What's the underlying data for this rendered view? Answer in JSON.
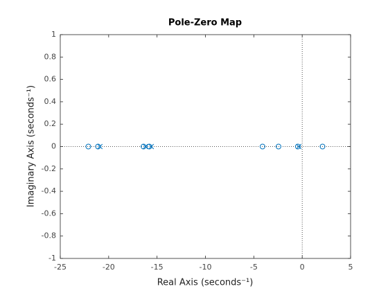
{
  "chart_data": {
    "type": "scatter",
    "title": "Pole-Zero Map",
    "xlabel": "Real Axis (seconds⁻¹)",
    "ylabel": "Imaginary Axis (seconds⁻¹)",
    "xlim": [
      -25,
      5
    ],
    "ylim": [
      -1,
      1
    ],
    "xticks": [
      -25,
      -20,
      -15,
      -10,
      -5,
      0,
      5
    ],
    "yticks": [
      -1,
      -0.8,
      -0.6,
      -0.4,
      -0.2,
      0,
      0.2,
      0.4,
      0.6,
      0.8,
      1
    ],
    "grid": false,
    "zero_lines": true,
    "series": [
      {
        "marker": "o",
        "color": "#0072bd",
        "x": [
          -22.1,
          -21.1,
          -16.4,
          -15.8,
          -4.1,
          -2.45,
          -0.45,
          2.1
        ],
        "values": [
          0,
          0,
          0,
          0,
          0,
          0,
          0,
          0
        ]
      },
      {
        "marker": "x",
        "color": "#0072bd",
        "x": [
          -20.9,
          -16.2,
          -15.6,
          -0.35
        ],
        "values": [
          0,
          0,
          0,
          0
        ]
      }
    ]
  }
}
